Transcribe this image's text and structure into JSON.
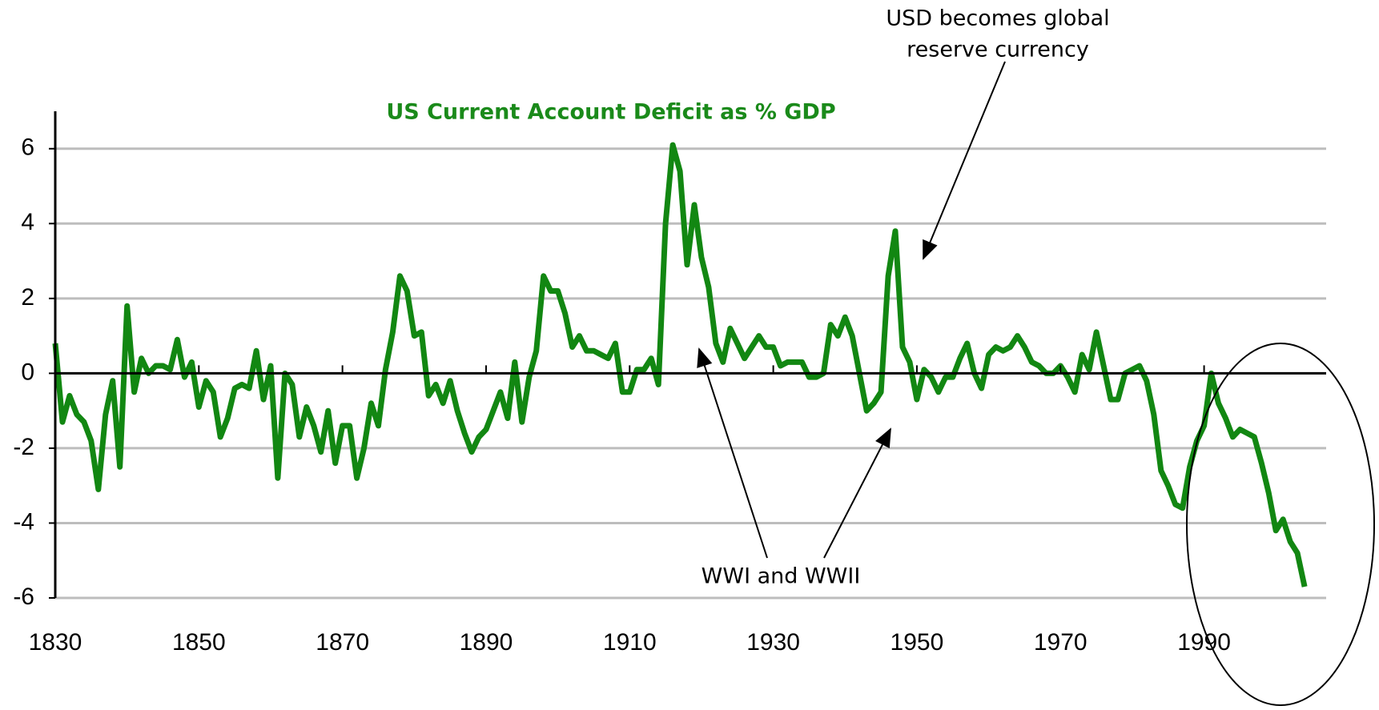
{
  "chart_data": {
    "type": "line",
    "title": "US Current Account Deficit as % GDP",
    "x": [
      1830,
      1831,
      1832,
      1833,
      1834,
      1835,
      1836,
      1837,
      1838,
      1839,
      1840,
      1841,
      1842,
      1843,
      1844,
      1845,
      1846,
      1847,
      1848,
      1849,
      1850,
      1851,
      1852,
      1853,
      1854,
      1855,
      1856,
      1857,
      1858,
      1859,
      1860,
      1861,
      1862,
      1863,
      1864,
      1865,
      1866,
      1867,
      1868,
      1869,
      1870,
      1871,
      1872,
      1873,
      1874,
      1875,
      1876,
      1877,
      1878,
      1879,
      1880,
      1881,
      1882,
      1883,
      1884,
      1885,
      1886,
      1887,
      1888,
      1889,
      1890,
      1891,
      1892,
      1893,
      1894,
      1895,
      1896,
      1897,
      1898,
      1899,
      1900,
      1901,
      1902,
      1903,
      1904,
      1905,
      1906,
      1907,
      1908,
      1909,
      1910,
      1911,
      1912,
      1913,
      1914,
      1915,
      1916,
      1917,
      1918,
      1919,
      1920,
      1921,
      1922,
      1923,
      1924,
      1925,
      1926,
      1927,
      1928,
      1929,
      1930,
      1931,
      1932,
      1933,
      1934,
      1935,
      1936,
      1937,
      1938,
      1939,
      1940,
      1941,
      1942,
      1943,
      1944,
      1945,
      1946,
      1947,
      1948,
      1949,
      1950,
      1951,
      1952,
      1953,
      1954,
      1955,
      1956,
      1957,
      1958,
      1959,
      1960,
      1961,
      1962,
      1963,
      1964,
      1965,
      1966,
      1967,
      1968,
      1969,
      1970,
      1971,
      1972,
      1973,
      1974,
      1975,
      1976,
      1977,
      1978,
      1979,
      1980,
      1981,
      1982,
      1983,
      1984,
      1985,
      1986,
      1987,
      1988,
      1989,
      1990,
      1991,
      1992,
      1993,
      1994,
      1995,
      1996,
      1997,
      1998,
      1999,
      2000,
      2001,
      2002,
      2003,
      2004
    ],
    "series": [
      {
        "name": "US Current Account Deficit as % GDP",
        "color": "#128712",
        "values": [
          0.8,
          -1.3,
          -0.6,
          -1.1,
          -1.3,
          -1.8,
          -3.1,
          -1.1,
          -0.2,
          -2.5,
          1.8,
          -0.5,
          0.4,
          0.0,
          0.2,
          0.2,
          0.1,
          0.9,
          -0.1,
          0.3,
          -0.9,
          -0.2,
          -0.5,
          -1.7,
          -1.2,
          -0.4,
          -0.3,
          -0.4,
          0.6,
          -0.7,
          0.2,
          -2.8,
          0.0,
          -0.3,
          -1.7,
          -0.9,
          -1.4,
          -2.1,
          -1.0,
          -2.4,
          -1.4,
          -1.4,
          -2.8,
          -2.0,
          -0.8,
          -1.4,
          0.1,
          1.1,
          2.6,
          2.2,
          1.0,
          1.1,
          -0.6,
          -0.3,
          -0.8,
          -0.2,
          -1.0,
          -1.6,
          -2.1,
          -1.7,
          -1.5,
          -1.0,
          -0.5,
          -1.2,
          0.3,
          -1.3,
          -0.1,
          0.6,
          2.6,
          2.2,
          2.2,
          1.6,
          0.7,
          1.0,
          0.6,
          0.6,
          0.5,
          0.4,
          0.8,
          -0.5,
          -0.5,
          0.1,
          0.1,
          0.4,
          -0.3,
          4.0,
          6.1,
          5.4,
          2.9,
          4.5,
          3.1,
          2.3,
          0.8,
          0.3,
          1.2,
          0.8,
          0.4,
          0.7,
          1.0,
          0.7,
          0.7,
          0.2,
          0.3,
          0.3,
          0.3,
          -0.1,
          -0.1,
          0.0,
          1.3,
          1.0,
          1.5,
          1.0,
          0.0,
          -1.0,
          -0.8,
          -0.5,
          2.6,
          3.8,
          0.7,
          0.3,
          -0.7,
          0.1,
          -0.1,
          -0.5,
          -0.1,
          -0.1,
          0.4,
          0.8,
          0.0,
          -0.4,
          0.5,
          0.7,
          0.6,
          0.7,
          1.0,
          0.7,
          0.3,
          0.2,
          0.0,
          0.0,
          0.2,
          -0.1,
          -0.5,
          0.5,
          0.1,
          1.1,
          0.2,
          -0.7,
          -0.7,
          0.0,
          0.1,
          0.2,
          -0.2,
          -1.1,
          -2.6,
          -3.0,
          -3.5,
          -3.6,
          -2.5,
          -1.8,
          -1.4,
          0.0,
          -0.8,
          -1.2,
          -1.7,
          -1.5,
          -1.6,
          -1.7,
          -2.4,
          -3.2,
          -4.2,
          -3.9,
          -4.5,
          -4.8,
          -5.7
        ]
      }
    ],
    "xlim": [
      1830,
      2007
    ],
    "xticks": [
      1830,
      1850,
      1870,
      1890,
      1910,
      1930,
      1950,
      1970,
      1990
    ],
    "ylim": [
      -6,
      7
    ],
    "yticks": [
      -6,
      -4,
      -2,
      0,
      2,
      4,
      6
    ],
    "grid": true,
    "annotations": [
      {
        "lines": [
          "USD becomes global",
          "reserve currency"
        ]
      },
      {
        "lines": [
          "WWI and WWII"
        ]
      }
    ]
  }
}
